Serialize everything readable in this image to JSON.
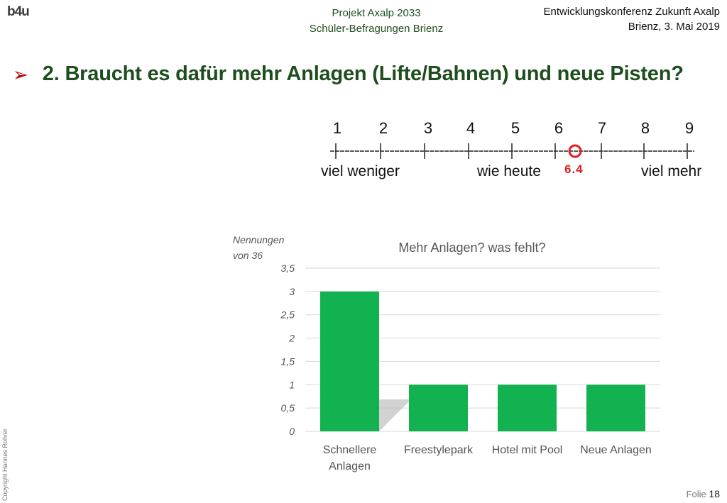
{
  "header": {
    "logo": "b4u",
    "center_line1": "Projekt Axalp 2033",
    "center_line2": "Schüler-Befragungen Brienz",
    "right_line1": "Entwicklungskonferenz Zukunft Axalp",
    "right_line2": "Brienz, 3. Mai 2019"
  },
  "slide": {
    "title": "2. Braucht es dafür mehr Anlagen (Lifte/Bahnen) und neue Pisten?",
    "bullet_icon": "arrow-bullet-icon"
  },
  "scale": {
    "numbers": [
      "1",
      "2",
      "3",
      "4",
      "5",
      "6",
      "7",
      "8",
      "9"
    ],
    "label_left": "viel weniger",
    "label_mid": "wie heute",
    "label_right": "viel mehr",
    "marker_value": "6.4",
    "marker_color": "#e02020"
  },
  "chart_data": {
    "type": "bar",
    "title": "Mehr Anlagen? was fehlt?",
    "ylabel_line1": "Nennungen",
    "ylabel_line2": "von 36",
    "categories": [
      "Schnellere Anlagen",
      "Freestylepark",
      "Hotel mit Pool",
      "Neue Anlagen"
    ],
    "values": [
      3,
      1,
      1,
      1
    ],
    "ylim": [
      0,
      3.5
    ],
    "yticks": [
      "0",
      "0,5",
      "1",
      "1,5",
      "2",
      "2,5",
      "3",
      "3,5"
    ],
    "grid": true,
    "bar_color": "#11b24f"
  },
  "footer": {
    "copyright": "Copyright Hannes Rohrer",
    "slide_label": "Folie",
    "slide_number": "18"
  }
}
